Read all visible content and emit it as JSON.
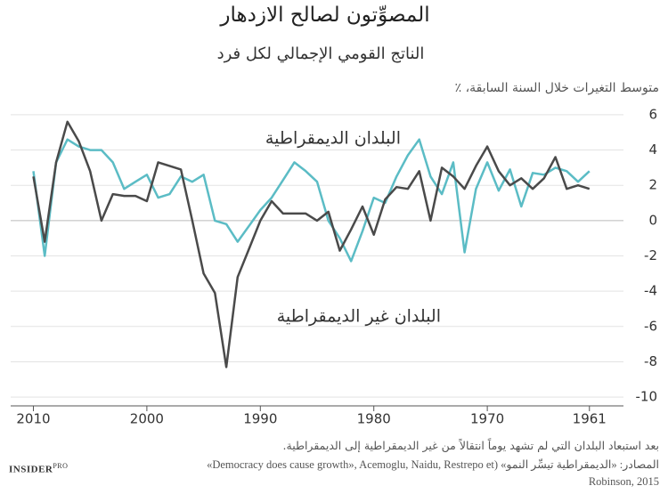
{
  "chart_data": {
    "type": "line",
    "title": "المصوِّتون لصالح الازدهار",
    "subtitle": "الناتج القومي الإجمالي لكل فرد",
    "y_label": "متوسط التغيرات خلال السنة السابقة، ٪",
    "footnote": "بعد استبعاد البلدان التي لم تشهد يوماً انتقالاً من غير الديمقراطية إلى الديمقراطية.",
    "source_lines": [
      "المصادر: «الديمقراطية تيسِّر النمو» (Democracy does cause growth», Acemoglu, Naidu, Restrepo et»",
      "Robinson, 2015"
    ],
    "brand": "INSIDER",
    "brand_suffix": "PRO",
    "x": [
      2010,
      2009,
      2008,
      2007,
      2006,
      2005,
      2004,
      2003,
      2002,
      2001,
      2000,
      1999,
      1998,
      1997,
      1996,
      1995,
      1994,
      1993,
      1992,
      1991,
      1990,
      1989,
      1988,
      1987,
      1986,
      1985,
      1984,
      1983,
      1982,
      1981,
      1980,
      1979,
      1978,
      1977,
      1976,
      1975,
      1974,
      1973,
      1972,
      1971,
      1970,
      1969,
      1968,
      1967,
      1966,
      1965,
      1964,
      1963,
      1962,
      1961
    ],
    "series": [
      {
        "name": "البلدان الديمقراطية",
        "color": "#5bbcc5",
        "values": [
          2.8,
          -2.0,
          3.3,
          4.6,
          4.2,
          4.0,
          4.0,
          3.3,
          1.8,
          2.2,
          2.6,
          1.3,
          1.5,
          2.5,
          2.2,
          2.6,
          0.0,
          -0.2,
          -1.2,
          -0.3,
          0.6,
          1.3,
          2.3,
          3.3,
          2.8,
          2.2,
          0.0,
          -1.0,
          -2.3,
          -0.6,
          1.3,
          1.0,
          2.5,
          3.7,
          4.6,
          2.5,
          1.5,
          3.3,
          -1.8,
          1.8,
          3.3,
          1.7,
          2.9,
          0.8,
          2.7,
          2.6,
          3.0,
          2.8,
          2.2,
          2.8
        ]
      },
      {
        "name": "البلدان غير الديمقراطية",
        "color": "#4a4a4a",
        "values": [
          2.5,
          -1.2,
          3.3,
          5.6,
          4.5,
          2.8,
          0.0,
          1.5,
          1.4,
          1.4,
          1.1,
          3.3,
          3.1,
          2.9,
          0.0,
          -3.0,
          -4.1,
          -8.3,
          -3.2,
          -1.6,
          0.0,
          1.1,
          0.4,
          0.4,
          0.4,
          0.0,
          0.5,
          -1.7,
          -0.5,
          0.8,
          -0.8,
          1.2,
          1.9,
          1.8,
          2.8,
          0.0,
          3.0,
          2.5,
          1.8,
          3.1,
          4.2,
          2.8,
          2.0,
          2.4,
          1.8,
          2.4,
          3.6,
          1.8,
          2.0,
          1.8
        ]
      }
    ],
    "xlim": [
      2012,
      1958
    ],
    "xticks": [
      2010,
      2000,
      1990,
      1980,
      1970,
      1961
    ],
    "ylim": [
      -10.5,
      6.5
    ],
    "yticks": [
      6,
      4,
      2,
      0,
      -2,
      -4,
      -6,
      -8,
      -10
    ],
    "grid": true
  }
}
